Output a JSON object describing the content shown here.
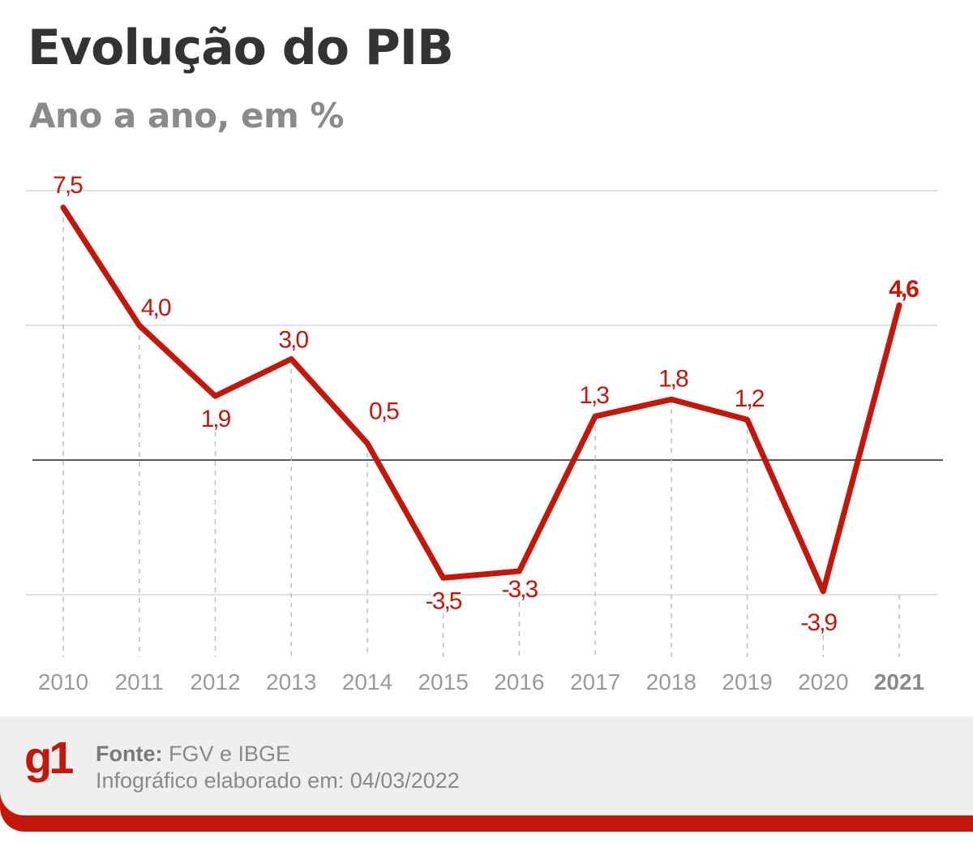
{
  "header": {
    "title": "Evolução do PIB",
    "subtitle": "Ano a ano, em %"
  },
  "chart_data": {
    "type": "line",
    "title": "Evolução do PIB",
    "subtitle": "Ano a ano, em %",
    "categories": [
      "2010",
      "2011",
      "2012",
      "2013",
      "2014",
      "2015",
      "2016",
      "2017",
      "2018",
      "2019",
      "2020",
      "2021"
    ],
    "values": [
      7.5,
      4.0,
      1.9,
      3.0,
      0.5,
      -3.5,
      -3.3,
      1.3,
      1.8,
      1.2,
      -3.9,
      4.6
    ],
    "data_labels": [
      "7,5",
      "4,0",
      "1,9",
      "3,0",
      "0,5",
      "-3,5",
      "-3,3",
      "1,3",
      "1,8",
      "1,2",
      "-3,9",
      "4,6"
    ],
    "highlight_category": "2021",
    "ylim": [
      -6,
      8
    ],
    "gridlines": [
      8,
      4,
      0,
      -4
    ],
    "grid": true,
    "line_color": "#c4170c"
  },
  "footer": {
    "logo": "g1",
    "source_label": "Fonte:",
    "source_value": "FGV e IBGE",
    "date_line": "Infográfico elaborado em: 04/03/2022"
  }
}
